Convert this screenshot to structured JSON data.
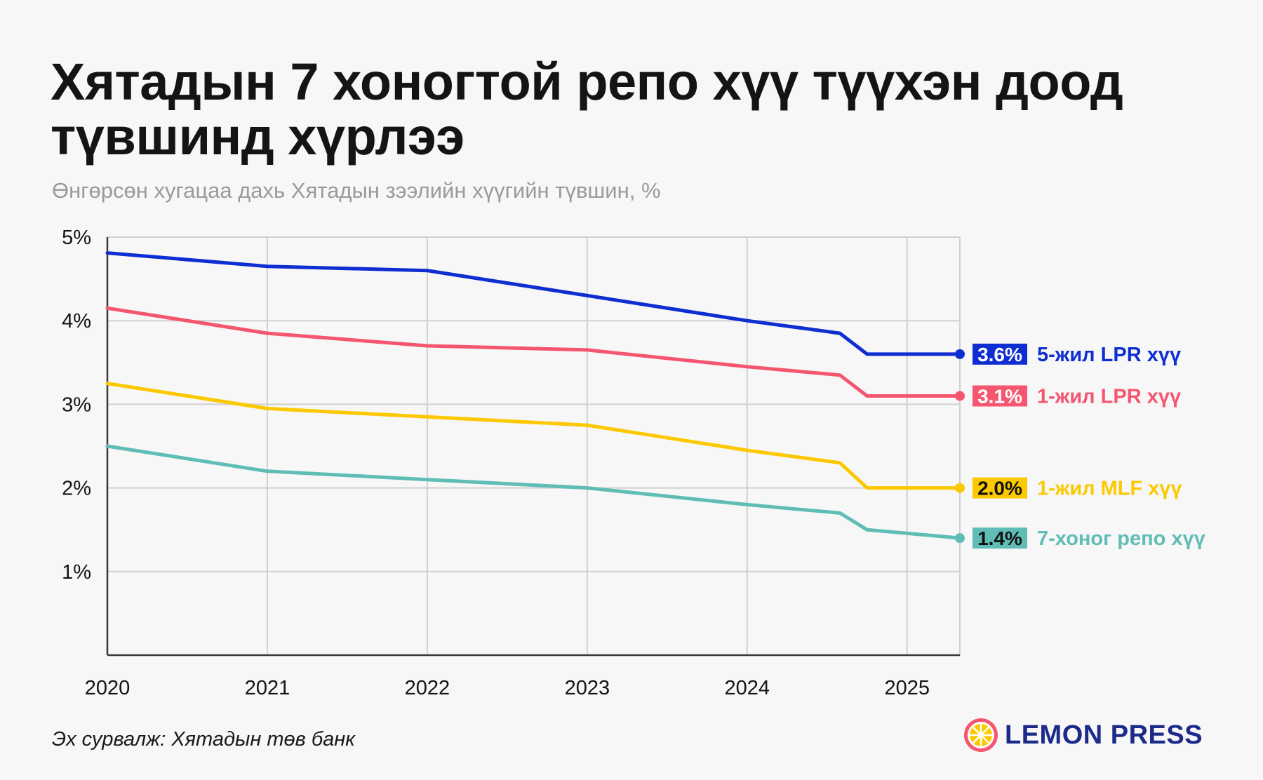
{
  "title": "Хятадын 7 хоногтой репо хүү түүхэн доод түвшинд хүрлээ",
  "subtitle": "Өнгөрсөн хугацаа дахь Хятадын зээлийн хүүгийн түвшин, %",
  "source": "Эх сурвалж: Хятадын төв банк",
  "brand": {
    "name": "LEMON PRESS",
    "icon": "lemon-slice-icon"
  },
  "chart_data": {
    "type": "line",
    "x_ticks": [
      "2020",
      "2021",
      "2022",
      "2023",
      "2024",
      "2025"
    ],
    "y_ticks": [
      "1%",
      "2%",
      "3%",
      "4%",
      "5%"
    ],
    "xlim": [
      2020,
      2025.33
    ],
    "ylim": [
      0,
      5
    ],
    "grid": true,
    "series": [
      {
        "name": "5-жил LPR хүү",
        "value_label": "3.6%",
        "color": "#0f2ed1",
        "label_text_color": "#ffffff",
        "points": [
          [
            2020,
            4.81
          ],
          [
            2021,
            4.65
          ],
          [
            2022,
            4.6
          ],
          [
            2023,
            4.3
          ],
          [
            2024,
            4.0
          ],
          [
            2024.58,
            3.85
          ],
          [
            2024.75,
            3.6
          ],
          [
            2025.33,
            3.6
          ]
        ]
      },
      {
        "name": "1-жил LPR хүү",
        "value_label": "3.1%",
        "color": "#f5566f",
        "label_text_color": "#ffffff",
        "points": [
          [
            2020,
            4.15
          ],
          [
            2021,
            3.85
          ],
          [
            2022,
            3.7
          ],
          [
            2023,
            3.65
          ],
          [
            2024,
            3.45
          ],
          [
            2024.58,
            3.35
          ],
          [
            2024.75,
            3.1
          ],
          [
            2025.33,
            3.1
          ]
        ]
      },
      {
        "name": "1-жил MLF хүү",
        "value_label": "2.0%",
        "color": "#fcc900",
        "label_text_color": "#111111",
        "points": [
          [
            2020,
            3.25
          ],
          [
            2021,
            2.95
          ],
          [
            2022,
            2.85
          ],
          [
            2023,
            2.75
          ],
          [
            2024,
            2.45
          ],
          [
            2024.58,
            2.3
          ],
          [
            2024.75,
            2.0
          ],
          [
            2025.33,
            2.0
          ]
        ]
      },
      {
        "name": "7-хоног репо хүү",
        "value_label": "1.4%",
        "color": "#5fbdb6",
        "label_text_color": "#111111",
        "points": [
          [
            2020,
            2.5
          ],
          [
            2021,
            2.2
          ],
          [
            2022,
            2.1
          ],
          [
            2023,
            2.0
          ],
          [
            2024,
            1.8
          ],
          [
            2024.58,
            1.7
          ],
          [
            2024.75,
            1.5
          ],
          [
            2025.33,
            1.4
          ]
        ]
      }
    ]
  }
}
